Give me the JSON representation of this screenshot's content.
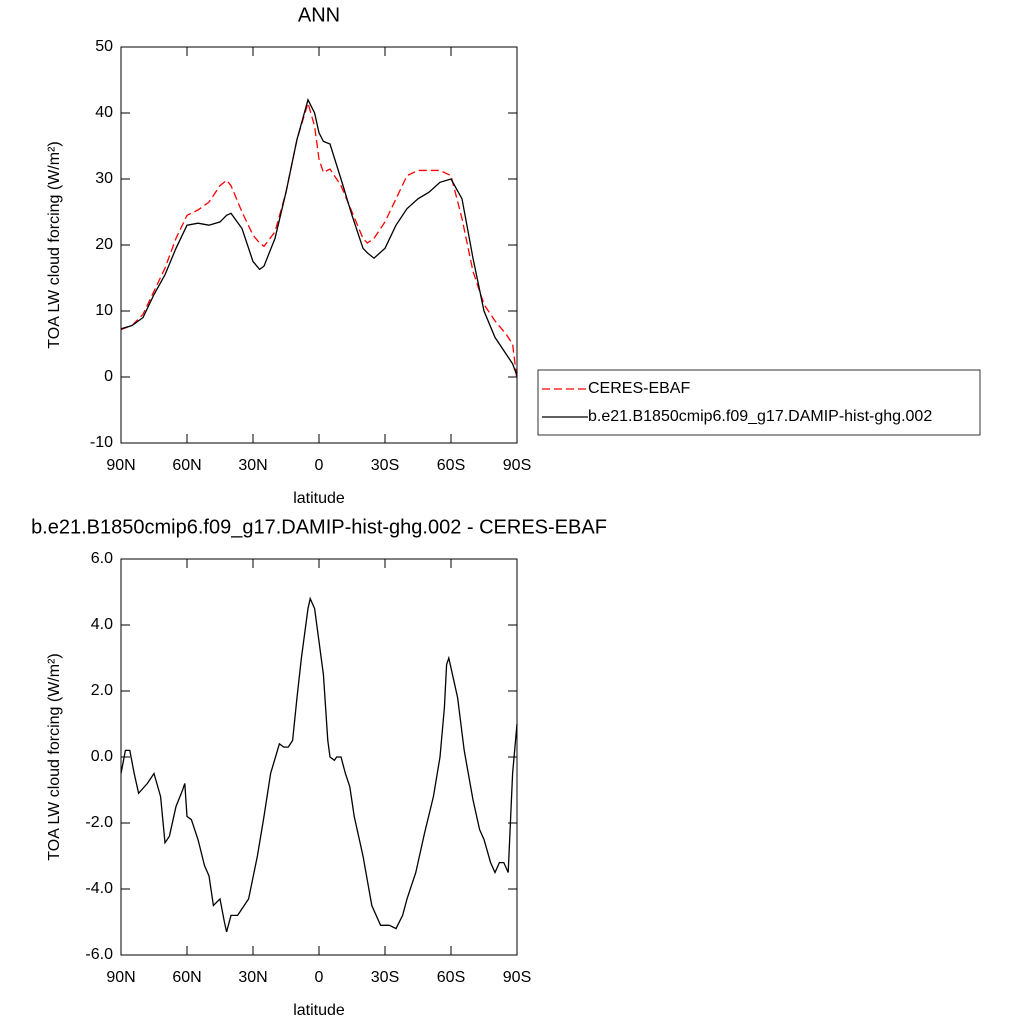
{
  "chart_data": [
    {
      "type": "line",
      "title": "ANN",
      "x_label": "latitude",
      "y_label": "TOA LW cloud forcing (W/m²)",
      "xlim": [
        90,
        -90
      ],
      "xticks": [
        {
          "value": 90,
          "label": "90N"
        },
        {
          "value": 60,
          "label": "60N"
        },
        {
          "value": 30,
          "label": "30N"
        },
        0,
        {
          "value": -30,
          "label": "30S"
        },
        {
          "value": -60,
          "label": "60S"
        },
        {
          "value": -90,
          "label": "90S"
        }
      ],
      "ylim": [
        -10,
        50
      ],
      "yticks": [
        -10,
        0,
        10,
        20,
        30,
        40,
        50
      ],
      "legend": "right",
      "x": [
        90,
        85,
        80,
        75,
        70,
        65,
        60,
        55,
        50,
        45,
        42,
        40,
        35,
        30,
        27,
        25,
        20,
        15,
        10,
        5,
        2,
        0,
        -2,
        -5,
        -10,
        -15,
        -20,
        -22,
        -25,
        -30,
        -35,
        -40,
        -45,
        -50,
        -55,
        -60,
        -65,
        -70,
        -75,
        -80,
        -85,
        -88,
        -90
      ],
      "series": [
        {
          "name": "CERES-EBAF",
          "color": "#ff0000",
          "dash": "dashed",
          "values": [
            7.2,
            7.8,
            9.5,
            13,
            16.5,
            21,
            24.5,
            25.3,
            26.5,
            29,
            29.8,
            29,
            25,
            21.5,
            20.3,
            19.8,
            22,
            28,
            36,
            41.5,
            38,
            33,
            31,
            31.5,
            29,
            25,
            21,
            20.3,
            21,
            23.5,
            27,
            30.5,
            31.3,
            31.3,
            31.3,
            30.5,
            24,
            16,
            11,
            8.5,
            6.5,
            5,
            -0.5
          ]
        },
        {
          "name": "b.e21.B1850cmip6.f09_g17.DAMIP-hist-ghg.002",
          "color": "#000000",
          "dash": "solid",
          "values": [
            7.3,
            7.8,
            9,
            12.5,
            15.5,
            19.5,
            23,
            23.3,
            23,
            23.5,
            24.5,
            24.8,
            22.5,
            17.5,
            16.3,
            16.8,
            21,
            28,
            36,
            42,
            40,
            37,
            35.7,
            35.3,
            30,
            24.5,
            19.5,
            18.8,
            18,
            19.5,
            23,
            25.5,
            27,
            28,
            29.5,
            30,
            27,
            18,
            10,
            6,
            3.5,
            2,
            0.2
          ]
        }
      ]
    },
    {
      "type": "line",
      "title": "b.e21.B1850cmip6.f09_g17.DAMIP-hist-ghg.002 - CERES-EBAF",
      "x_label": "latitude",
      "y_label": "TOA LW cloud forcing (W/m²)",
      "xlim": [
        90,
        -90
      ],
      "xticks": [
        {
          "value": 90,
          "label": "90N"
        },
        {
          "value": 60,
          "label": "60N"
        },
        {
          "value": 30,
          "label": "30N"
        },
        0,
        {
          "value": -30,
          "label": "30S"
        },
        {
          "value": -60,
          "label": "60S"
        },
        {
          "value": -90,
          "label": "90S"
        }
      ],
      "ylim": [
        -6,
        6
      ],
      "yticks": [
        {
          "value": -6,
          "label": "-6.0"
        },
        {
          "value": -4,
          "label": "-4.0"
        },
        {
          "value": -2,
          "label": "-2.0"
        },
        {
          "value": 0,
          "label": "0.0"
        },
        {
          "value": 2,
          "label": "2.0"
        },
        {
          "value": 4,
          "label": "4.0"
        },
        {
          "value": 6,
          "label": "6.0"
        }
      ],
      "color": "#000000",
      "x": [
        90,
        88,
        86,
        84,
        82,
        78,
        75,
        72,
        70,
        68,
        65,
        62,
        61,
        60,
        58,
        55,
        52,
        50,
        48,
        45,
        43,
        42,
        40,
        37,
        34,
        32,
        28,
        25,
        22,
        18,
        16,
        14,
        12,
        10,
        8,
        5,
        4,
        2,
        0,
        -2,
        -4,
        -5,
        -7,
        -8,
        -10,
        -12,
        -14,
        -16,
        -20,
        -24,
        -28,
        -32,
        -35,
        -38,
        -40,
        -44,
        -48,
        -52,
        -55,
        -57,
        -58,
        -59,
        -61,
        -63,
        -66,
        -70,
        -73,
        -75,
        -78,
        -80,
        -82,
        -84,
        -86,
        -88,
        -90
      ],
      "values": [
        -0.5,
        0.2,
        0.2,
        -0.5,
        -1.1,
        -0.8,
        -0.5,
        -1.2,
        -2.6,
        -2.4,
        -1.5,
        -1.0,
        -0.8,
        -1.8,
        -1.9,
        -2.5,
        -3.3,
        -3.6,
        -4.5,
        -4.3,
        -5.0,
        -5.3,
        -4.8,
        -4.8,
        -4.5,
        -4.3,
        -3.0,
        -1.8,
        -0.5,
        0.4,
        0.3,
        0.3,
        0.5,
        1.8,
        3.0,
        4.5,
        4.8,
        4.5,
        3.5,
        2.5,
        0.5,
        0.0,
        -0.1,
        0.0,
        0.0,
        -0.5,
        -0.9,
        -1.8,
        -3.0,
        -4.5,
        -5.1,
        -5.1,
        -5.2,
        -4.8,
        -4.3,
        -3.5,
        -2.3,
        -1.2,
        0.0,
        1.5,
        2.8,
        3.0,
        2.4,
        1.8,
        0.2,
        -1.3,
        -2.2,
        -2.5,
        -3.2,
        -3.5,
        -3.2,
        -3.2,
        -3.5,
        -0.5,
        1.0
      ]
    }
  ]
}
